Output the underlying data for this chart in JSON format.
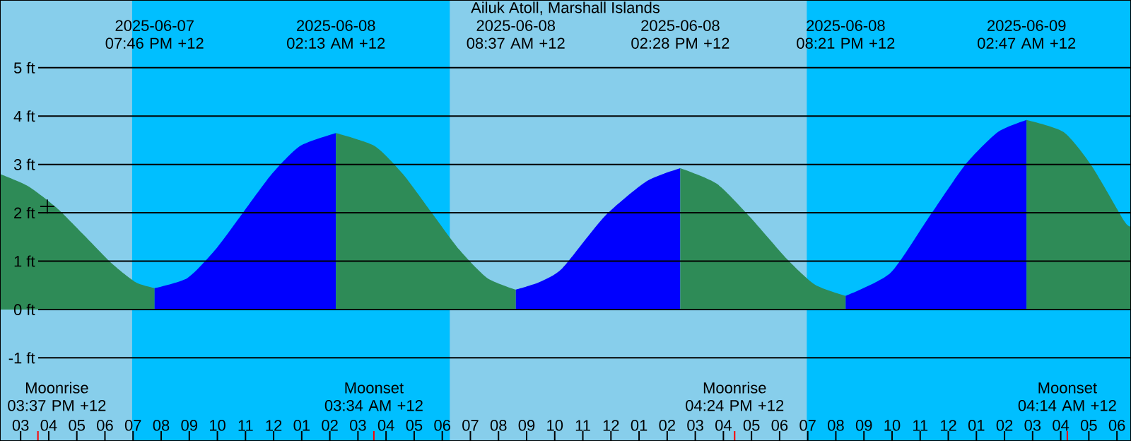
{
  "chart_data": {
    "type": "area",
    "title": "Ailuk Atoll, Marshall Islands",
    "xlim": [
      "2025-06-07T14:16",
      "2025-06-09T06:30"
    ],
    "ylim": [
      -2.72,
      6.4
    ],
    "xticks": [
      {
        "value": "2025-06-07T15:00",
        "label": "03"
      },
      {
        "value": "2025-06-07T16:00",
        "label": "04"
      },
      {
        "value": "2025-06-07T17:00",
        "label": "05"
      },
      {
        "value": "2025-06-07T18:00",
        "label": "06"
      },
      {
        "value": "2025-06-07T19:00",
        "label": "07"
      },
      {
        "value": "2025-06-07T20:00",
        "label": "08"
      },
      {
        "value": "2025-06-07T21:00",
        "label": "09"
      },
      {
        "value": "2025-06-07T22:00",
        "label": "10"
      },
      {
        "value": "2025-06-07T23:00",
        "label": "11"
      },
      {
        "value": "2025-06-08T00:00",
        "label": "12"
      },
      {
        "value": "2025-06-08T01:00",
        "label": "01"
      },
      {
        "value": "2025-06-08T02:00",
        "label": "02"
      },
      {
        "value": "2025-06-08T03:00",
        "label": "03"
      },
      {
        "value": "2025-06-08T04:00",
        "label": "04"
      },
      {
        "value": "2025-06-08T05:00",
        "label": "05"
      },
      {
        "value": "2025-06-08T06:00",
        "label": "06"
      },
      {
        "value": "2025-06-08T07:00",
        "label": "07"
      },
      {
        "value": "2025-06-08T08:00",
        "label": "08"
      },
      {
        "value": "2025-06-08T09:00",
        "label": "09"
      },
      {
        "value": "2025-06-08T10:00",
        "label": "10"
      },
      {
        "value": "2025-06-08T11:00",
        "label": "11"
      },
      {
        "value": "2025-06-08T12:00",
        "label": "12"
      },
      {
        "value": "2025-06-08T13:00",
        "label": "01"
      },
      {
        "value": "2025-06-08T14:00",
        "label": "02"
      },
      {
        "value": "2025-06-08T15:00",
        "label": "03"
      },
      {
        "value": "2025-06-08T16:00",
        "label": "04"
      },
      {
        "value": "2025-06-08T17:00",
        "label": "05"
      },
      {
        "value": "2025-06-08T18:00",
        "label": "06"
      },
      {
        "value": "2025-06-08T19:00",
        "label": "07"
      },
      {
        "value": "2025-06-08T20:00",
        "label": "08"
      },
      {
        "value": "2025-06-08T21:00",
        "label": "09"
      },
      {
        "value": "2025-06-08T22:00",
        "label": "10"
      },
      {
        "value": "2025-06-08T23:00",
        "label": "11"
      },
      {
        "value": "2025-06-09T00:00",
        "label": "12"
      },
      {
        "value": "2025-06-09T01:00",
        "label": "01"
      },
      {
        "value": "2025-06-09T02:00",
        "label": "02"
      },
      {
        "value": "2025-06-09T03:00",
        "label": "03"
      },
      {
        "value": "2025-06-09T04:00",
        "label": "04"
      },
      {
        "value": "2025-06-09T05:00",
        "label": "05"
      },
      {
        "value": "2025-06-09T06:00",
        "label": "06"
      }
    ],
    "yticks": [
      {
        "value": -1,
        "label": "-1 ft"
      },
      {
        "value": 0,
        "label": "0 ft"
      },
      {
        "value": 1,
        "label": "1 ft"
      },
      {
        "value": 2,
        "label": "2 ft"
      },
      {
        "value": 3,
        "label": "3 ft"
      },
      {
        "value": 4,
        "label": "4 ft"
      },
      {
        "value": 5,
        "label": "5 ft"
      }
    ],
    "grid": "y",
    "bands": [
      {
        "axis": "x",
        "from": "2025-06-07T18:58",
        "to": "2025-06-08T06:16",
        "color": "#00bfff"
      },
      {
        "axis": "x",
        "from": "2025-06-08T18:58",
        "to": "2025-06-09T06:30",
        "color": "#00bfff"
      }
    ],
    "series": [
      {
        "color": "#2e8b57",
        "x": [
          "2025-06-07T14:16",
          "2025-06-07T15:16",
          "2025-06-07T16:16",
          "2025-06-07T17:16",
          "2025-06-07T18:16",
          "2025-06-07T19:06",
          "2025-06-07T19:46"
        ],
        "values": [
          2.8,
          2.55,
          2.11,
          1.53,
          0.94,
          0.56,
          0.44
        ]
      },
      {
        "color": "#0000ff",
        "x": [
          "2025-06-07T19:46",
          "2025-06-07T20:56",
          "2025-06-07T21:56",
          "2025-06-07T22:56",
          "2025-06-07T23:56",
          "2025-06-08T00:56",
          "2025-06-08T02:13"
        ],
        "values": [
          0.44,
          0.65,
          1.24,
          2.02,
          2.8,
          3.38,
          3.65
        ]
      },
      {
        "color": "#2e8b57",
        "x": [
          "2025-06-08T02:13",
          "2025-06-08T03:36",
          "2025-06-08T04:36",
          "2025-06-08T05:36",
          "2025-06-08T06:36",
          "2025-06-08T07:36",
          "2025-06-08T08:37"
        ],
        "values": [
          3.65,
          3.38,
          2.8,
          2.02,
          1.24,
          0.65,
          0.41
        ]
      },
      {
        "color": "#0000ff",
        "x": [
          "2025-06-08T08:37",
          "2025-06-08T09:26",
          "2025-06-08T10:16",
          "2025-06-08T11:46",
          "2025-06-08T13:16",
          "2025-06-08T14:28"
        ],
        "values": [
          0.41,
          0.56,
          0.85,
          1.92,
          2.65,
          2.92
        ]
      },
      {
        "color": "#2e8b57",
        "x": [
          "2025-06-08T14:28",
          "2025-06-08T15:46",
          "2025-06-08T16:56",
          "2025-06-08T18:16",
          "2025-06-08T19:16",
          "2025-06-08T20:21"
        ],
        "values": [
          2.92,
          2.6,
          1.92,
          1.04,
          0.51,
          0.28
        ]
      },
      {
        "color": "#0000ff",
        "x": [
          "2025-06-08T20:21",
          "2025-06-08T21:56",
          "2025-06-08T23:16",
          "2025-06-09T00:36",
          "2025-06-09T01:46",
          "2025-06-09T02:47"
        ],
        "values": [
          0.28,
          0.75,
          1.87,
          2.99,
          3.67,
          3.92
        ]
      },
      {
        "color": "#2e8b57",
        "x": [
          "2025-06-09T02:47",
          "2025-06-09T04:06",
          "2025-06-09T05:06",
          "2025-06-09T06:16",
          "2025-06-09T06:30"
        ],
        "values": [
          3.92,
          3.67,
          2.97,
          1.82,
          1.72
        ]
      },
      {
        "type": "scatter",
        "marker": "cross",
        "color": "#000000",
        "x": [
          "2025-06-07T15:57"
        ],
        "values": [
          2.13
        ]
      }
    ],
    "annotations": [
      "2025-06-07 07:46 PM +12",
      "2025-06-08 02:13 AM +12",
      "2025-06-08 08:37 AM +12",
      "2025-06-08 02:28 PM +12",
      "2025-06-08 08:21 PM +12",
      "2025-06-09 02:47 AM +12"
    ],
    "ref_lines": [
      {
        "axis": "x",
        "value": "2025-06-07T15:37",
        "label": "Moonrise 03:37 PM +12",
        "color": "#ff0000"
      },
      {
        "axis": "x",
        "value": "2025-06-08T03:34",
        "label": "Moonset 03:34 AM +12",
        "color": "#ff0000"
      },
      {
        "axis": "x",
        "value": "2025-06-08T16:24",
        "label": "Moonrise 04:24 PM +12",
        "color": "#ff0000"
      },
      {
        "axis": "x",
        "value": "2025-06-09T04:14",
        "label": "Moonset 04:14 AM +12",
        "color": "#ff0000"
      }
    ]
  }
}
